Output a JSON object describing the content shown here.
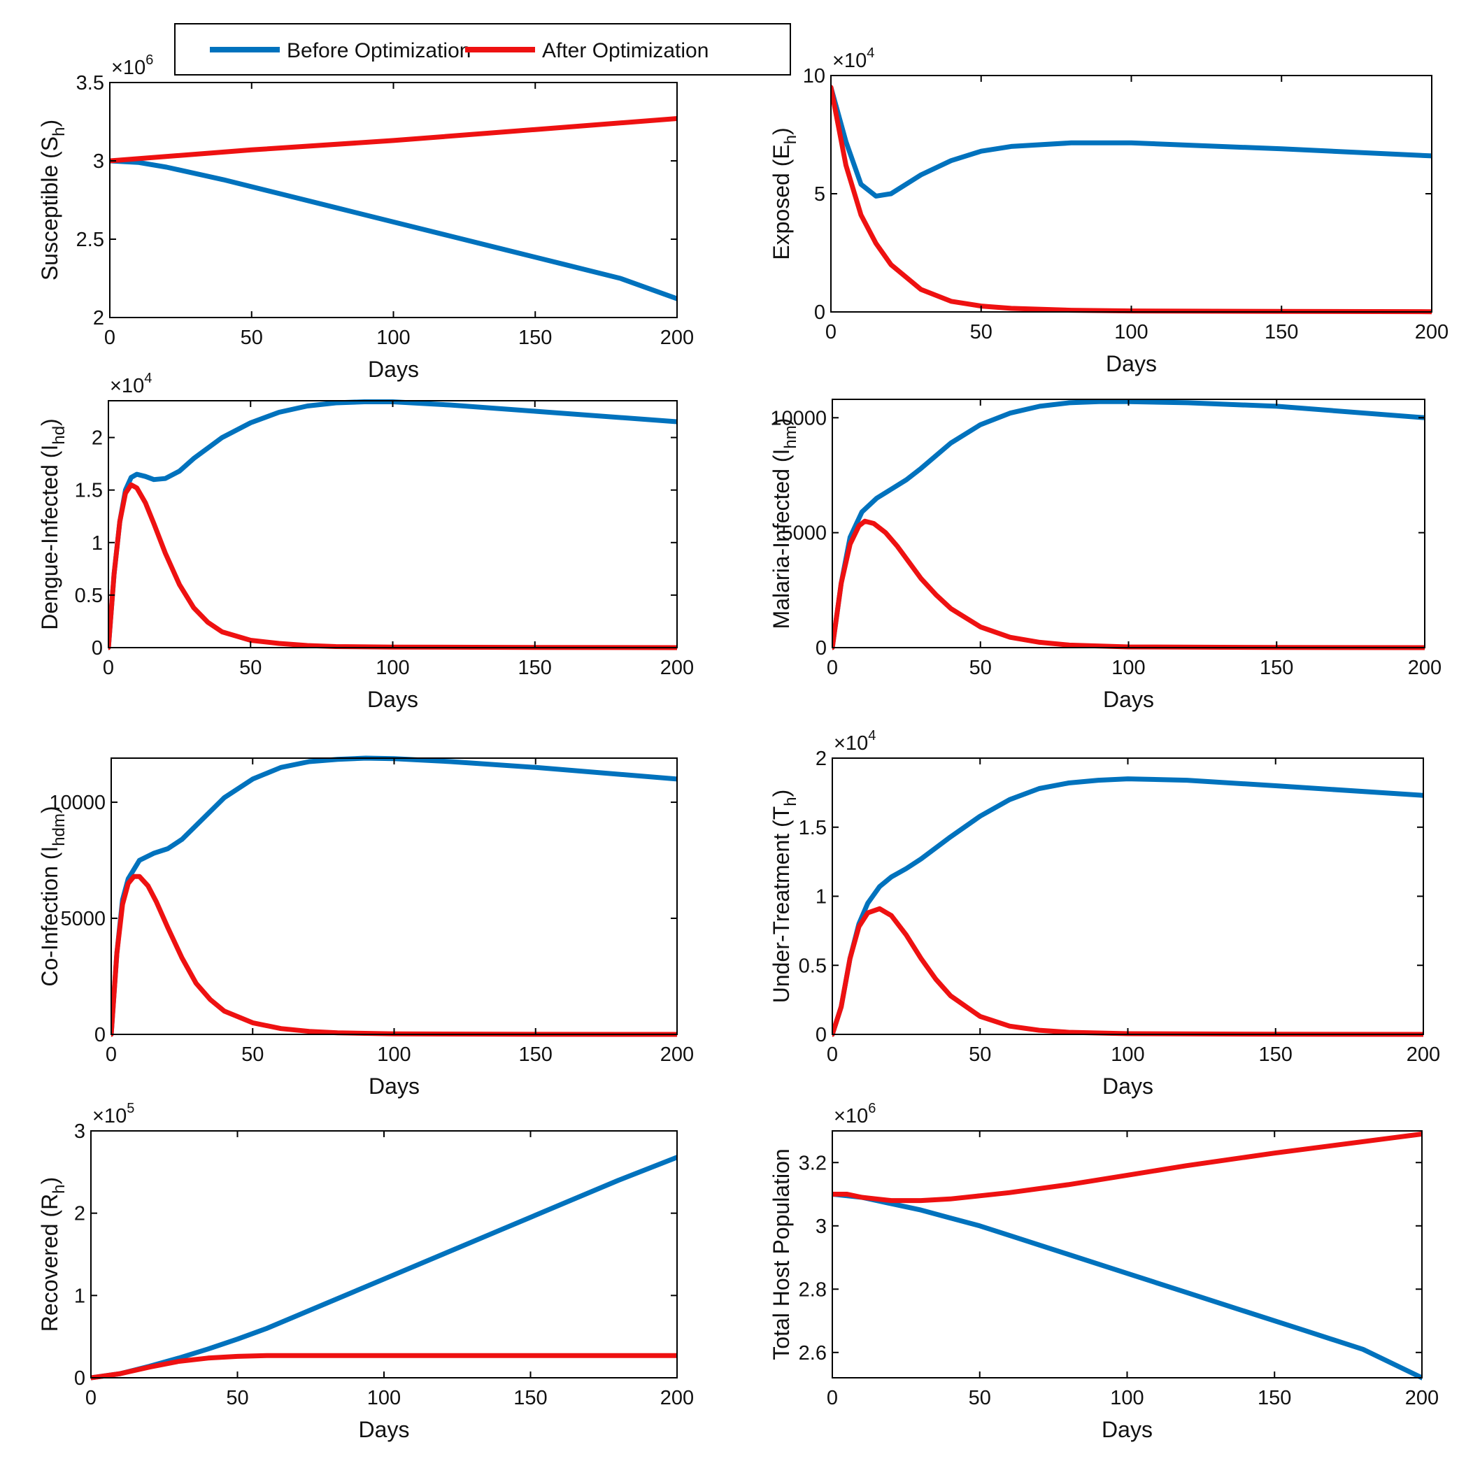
{
  "legend": {
    "entries": [
      {
        "label": "Before Optimization",
        "color": "#0072BD"
      },
      {
        "label": "After Optimization",
        "color": "#EE1111"
      }
    ]
  },
  "chart_data": [
    {
      "type": "line",
      "title": "",
      "ylabel": {
        "main": "Susceptible (S",
        "sub": "h",
        "end": ")"
      },
      "xlabel": "Days",
      "multiplier": {
        "base": "×10",
        "exp": "6"
      },
      "xlim": [
        0,
        200
      ],
      "ylim": [
        2,
        3.5
      ],
      "xticks": [
        0,
        50,
        100,
        150,
        200
      ],
      "xtick_labels": [
        "0",
        "50",
        "100",
        "150",
        "200"
      ],
      "yticks": [
        2,
        2.5,
        3,
        3.5
      ],
      "ytick_labels": [
        "2",
        "2.5",
        "3",
        "3.5"
      ],
      "series": [
        {
          "name": "Before Optimization",
          "x": [
            0,
            10,
            20,
            40,
            60,
            80,
            100,
            120,
            140,
            160,
            180,
            200
          ],
          "y": [
            3.0,
            2.99,
            2.96,
            2.88,
            2.79,
            2.7,
            2.61,
            2.52,
            2.43,
            2.34,
            2.25,
            2.12
          ]
        },
        {
          "name": "After Optimization",
          "x": [
            0,
            50,
            100,
            150,
            200
          ],
          "y": [
            3.0,
            3.07,
            3.13,
            3.2,
            3.27
          ]
        }
      ]
    },
    {
      "type": "line",
      "title": "",
      "ylabel": {
        "main": "Exposed (E",
        "sub": "h",
        "end": ")"
      },
      "xlabel": "Days",
      "multiplier": {
        "base": "×10",
        "exp": "4"
      },
      "xlim": [
        0,
        200
      ],
      "ylim": [
        0,
        10
      ],
      "xticks": [
        0,
        50,
        100,
        150,
        200
      ],
      "xtick_labels": [
        "0",
        "50",
        "100",
        "150",
        "200"
      ],
      "yticks": [
        0,
        5,
        10
      ],
      "ytick_labels": [
        "0",
        "5",
        "10"
      ],
      "series": [
        {
          "name": "Before Optimization",
          "x": [
            0,
            5,
            10,
            15,
            20,
            30,
            40,
            50,
            60,
            80,
            100,
            120,
            150,
            200
          ],
          "y": [
            9.5,
            7.2,
            5.4,
            4.9,
            5.0,
            5.8,
            6.4,
            6.8,
            7.0,
            7.15,
            7.15,
            7.05,
            6.9,
            6.6
          ]
        },
        {
          "name": "After Optimization",
          "x": [
            0,
            5,
            10,
            15,
            20,
            30,
            40,
            50,
            60,
            80,
            100,
            150,
            200
          ],
          "y": [
            9.5,
            6.2,
            4.1,
            2.9,
            2.0,
            0.95,
            0.45,
            0.25,
            0.15,
            0.07,
            0.04,
            0.02,
            0.01
          ]
        }
      ]
    },
    {
      "type": "line",
      "title": "",
      "ylabel": {
        "main": "Dengue-Infected (I",
        "sub": "hd",
        "end": ")"
      },
      "xlabel": "Days",
      "multiplier": {
        "base": "×10",
        "exp": "4"
      },
      "xlim": [
        0,
        200
      ],
      "ylim": [
        0,
        2.35
      ],
      "xticks": [
        0,
        50,
        100,
        150,
        200
      ],
      "xtick_labels": [
        "0",
        "50",
        "100",
        "150",
        "200"
      ],
      "yticks": [
        0,
        0.5,
        1,
        1.5,
        2
      ],
      "ytick_labels": [
        "0",
        "0.5",
        "1",
        "1.5",
        "2"
      ],
      "series": [
        {
          "name": "Before Optimization",
          "x": [
            0,
            2,
            4,
            6,
            8,
            10,
            13,
            16,
            20,
            25,
            30,
            40,
            50,
            60,
            70,
            80,
            90,
            100,
            120,
            150,
            200
          ],
          "y": [
            0,
            0.7,
            1.2,
            1.5,
            1.62,
            1.65,
            1.63,
            1.6,
            1.61,
            1.68,
            1.8,
            2.0,
            2.14,
            2.24,
            2.3,
            2.33,
            2.34,
            2.34,
            2.31,
            2.25,
            2.15
          ]
        },
        {
          "name": "After Optimization",
          "x": [
            0,
            2,
            4,
            6,
            8,
            10,
            13,
            16,
            20,
            25,
            30,
            35,
            40,
            50,
            60,
            70,
            80,
            100,
            150,
            200
          ],
          "y": [
            0,
            0.7,
            1.2,
            1.47,
            1.55,
            1.52,
            1.38,
            1.18,
            0.9,
            0.6,
            0.38,
            0.24,
            0.15,
            0.07,
            0.04,
            0.02,
            0.01,
            0.005,
            0.001,
            0
          ]
        }
      ]
    },
    {
      "type": "line",
      "title": "",
      "ylabel": {
        "main": "Malaria-Infected (I",
        "sub": "hm",
        "end": ")"
      },
      "xlabel": "Days",
      "multiplier": null,
      "xlim": [
        0,
        200
      ],
      "ylim": [
        0,
        10800
      ],
      "xticks": [
        0,
        50,
        100,
        150,
        200
      ],
      "xtick_labels": [
        "0",
        "50",
        "100",
        "150",
        "200"
      ],
      "yticks": [
        0,
        5000,
        10000
      ],
      "ytick_labels": [
        "0",
        "5000",
        "10000"
      ],
      "series": [
        {
          "name": "Before Optimization",
          "x": [
            0,
            3,
            6,
            10,
            15,
            20,
            25,
            30,
            40,
            50,
            60,
            70,
            80,
            90,
            100,
            120,
            150,
            200
          ],
          "y": [
            0,
            2800,
            4800,
            5900,
            6500,
            6900,
            7300,
            7800,
            8900,
            9700,
            10200,
            10500,
            10650,
            10700,
            10700,
            10650,
            10500,
            10000
          ]
        },
        {
          "name": "After Optimization",
          "x": [
            0,
            3,
            6,
            9,
            11,
            14,
            18,
            22,
            26,
            30,
            35,
            40,
            50,
            60,
            70,
            80,
            100,
            150,
            200
          ],
          "y": [
            0,
            2800,
            4500,
            5300,
            5500,
            5400,
            5000,
            4400,
            3700,
            3000,
            2300,
            1700,
            900,
            450,
            230,
            110,
            30,
            5,
            0
          ]
        }
      ]
    },
    {
      "type": "line",
      "title": "",
      "ylabel": {
        "main": "Co-Infection (I",
        "sub": "hdm",
        "end": ")"
      },
      "xlabel": "Days",
      "multiplier": null,
      "xlim": [
        0,
        200
      ],
      "ylim": [
        0,
        11900
      ],
      "xticks": [
        0,
        50,
        100,
        150,
        200
      ],
      "xtick_labels": [
        "0",
        "50",
        "100",
        "150",
        "200"
      ],
      "yticks": [
        0,
        5000,
        10000
      ],
      "ytick_labels": [
        "0",
        "5000",
        "10000"
      ],
      "series": [
        {
          "name": "Before Optimization",
          "x": [
            0,
            2,
            4,
            6,
            10,
            15,
            20,
            25,
            30,
            40,
            50,
            60,
            70,
            80,
            90,
            100,
            120,
            150,
            200
          ],
          "y": [
            0,
            3500,
            5800,
            6700,
            7500,
            7800,
            8000,
            8400,
            9000,
            10200,
            11000,
            11500,
            11750,
            11850,
            11900,
            11880,
            11750,
            11500,
            11000
          ]
        },
        {
          "name": "After Optimization",
          "x": [
            0,
            2,
            4,
            6,
            8,
            10,
            13,
            16,
            20,
            25,
            30,
            35,
            40,
            50,
            60,
            70,
            80,
            100,
            150,
            200
          ],
          "y": [
            0,
            3500,
            5600,
            6500,
            6800,
            6800,
            6400,
            5700,
            4600,
            3300,
            2200,
            1500,
            1000,
            500,
            250,
            130,
            70,
            20,
            3,
            0
          ]
        }
      ]
    },
    {
      "type": "line",
      "title": "",
      "ylabel": {
        "main": "Under-Treatment (T",
        "sub": "h",
        "end": ")"
      },
      "xlabel": "Days",
      "multiplier": {
        "base": "×10",
        "exp": "4"
      },
      "xlim": [
        0,
        200
      ],
      "ylim": [
        0,
        2
      ],
      "xticks": [
        0,
        50,
        100,
        150,
        200
      ],
      "xtick_labels": [
        "0",
        "50",
        "100",
        "150",
        "200"
      ],
      "yticks": [
        0,
        0.5,
        1,
        1.5,
        2
      ],
      "ytick_labels": [
        "0",
        "0.5",
        "1",
        "1.5",
        "2"
      ],
      "series": [
        {
          "name": "Before Optimization",
          "x": [
            0,
            3,
            6,
            9,
            12,
            16,
            20,
            25,
            30,
            40,
            50,
            60,
            70,
            80,
            90,
            100,
            120,
            150,
            200
          ],
          "y": [
            0,
            0.2,
            0.55,
            0.8,
            0.95,
            1.07,
            1.14,
            1.2,
            1.27,
            1.43,
            1.58,
            1.7,
            1.78,
            1.82,
            1.84,
            1.85,
            1.84,
            1.8,
            1.73
          ]
        },
        {
          "name": "After Optimization",
          "x": [
            0,
            3,
            6,
            9,
            12,
            16,
            20,
            25,
            30,
            35,
            40,
            50,
            60,
            70,
            80,
            100,
            150,
            200
          ],
          "y": [
            0,
            0.2,
            0.55,
            0.78,
            0.88,
            0.91,
            0.86,
            0.72,
            0.55,
            0.4,
            0.28,
            0.13,
            0.06,
            0.03,
            0.015,
            0.005,
            0.001,
            0
          ]
        }
      ]
    },
    {
      "type": "line",
      "title": "",
      "ylabel": {
        "main": "Recovered (R",
        "sub": "h",
        "end": ")"
      },
      "xlabel": "Days",
      "multiplier": {
        "base": "×10",
        "exp": "5"
      },
      "xlim": [
        0,
        200
      ],
      "ylim": [
        0,
        3
      ],
      "xticks": [
        0,
        50,
        100,
        150,
        200
      ],
      "xtick_labels": [
        "0",
        "50",
        "100",
        "150",
        "200"
      ],
      "yticks": [
        0,
        1,
        2,
        3
      ],
      "ytick_labels": [
        "0",
        "1",
        "2",
        "3"
      ],
      "series": [
        {
          "name": "Before Optimization",
          "x": [
            0,
            10,
            20,
            30,
            40,
            50,
            60,
            80,
            100,
            120,
            140,
            160,
            180,
            200
          ],
          "y": [
            0,
            0.05,
            0.14,
            0.24,
            0.35,
            0.47,
            0.6,
            0.9,
            1.2,
            1.5,
            1.8,
            2.1,
            2.4,
            2.68
          ]
        },
        {
          "name": "After Optimization",
          "x": [
            0,
            10,
            20,
            30,
            40,
            50,
            60,
            80,
            100,
            150,
            200
          ],
          "y": [
            0,
            0.05,
            0.13,
            0.2,
            0.24,
            0.26,
            0.27,
            0.27,
            0.27,
            0.27,
            0.27
          ]
        }
      ]
    },
    {
      "type": "line",
      "title": "",
      "ylabel": {
        "main": "Total Host Population",
        "sub": "",
        "end": ""
      },
      "xlabel": "Days",
      "multiplier": {
        "base": "×10",
        "exp": "6"
      },
      "xlim": [
        0,
        200
      ],
      "ylim": [
        2.52,
        3.3
      ],
      "xticks": [
        0,
        50,
        100,
        150,
        200
      ],
      "xtick_labels": [
        "0",
        "50",
        "100",
        "150",
        "200"
      ],
      "yticks": [
        2.6,
        2.8,
        3,
        3.2
      ],
      "ytick_labels": [
        "2.6",
        "2.8",
        "3",
        "3.2"
      ],
      "series": [
        {
          "name": "Before Optimization",
          "x": [
            0,
            10,
            20,
            30,
            40,
            50,
            60,
            80,
            100,
            120,
            140,
            160,
            180,
            200
          ],
          "y": [
            3.1,
            3.09,
            3.07,
            3.05,
            3.025,
            3.0,
            2.97,
            2.91,
            2.85,
            2.79,
            2.73,
            2.67,
            2.61,
            2.52
          ]
        },
        {
          "name": "After Optimization",
          "x": [
            0,
            5,
            10,
            15,
            20,
            25,
            30,
            40,
            50,
            60,
            80,
            100,
            120,
            150,
            200
          ],
          "y": [
            3.1,
            3.1,
            3.09,
            3.085,
            3.08,
            3.08,
            3.08,
            3.085,
            3.095,
            3.105,
            3.13,
            3.16,
            3.19,
            3.23,
            3.29
          ]
        }
      ]
    }
  ]
}
